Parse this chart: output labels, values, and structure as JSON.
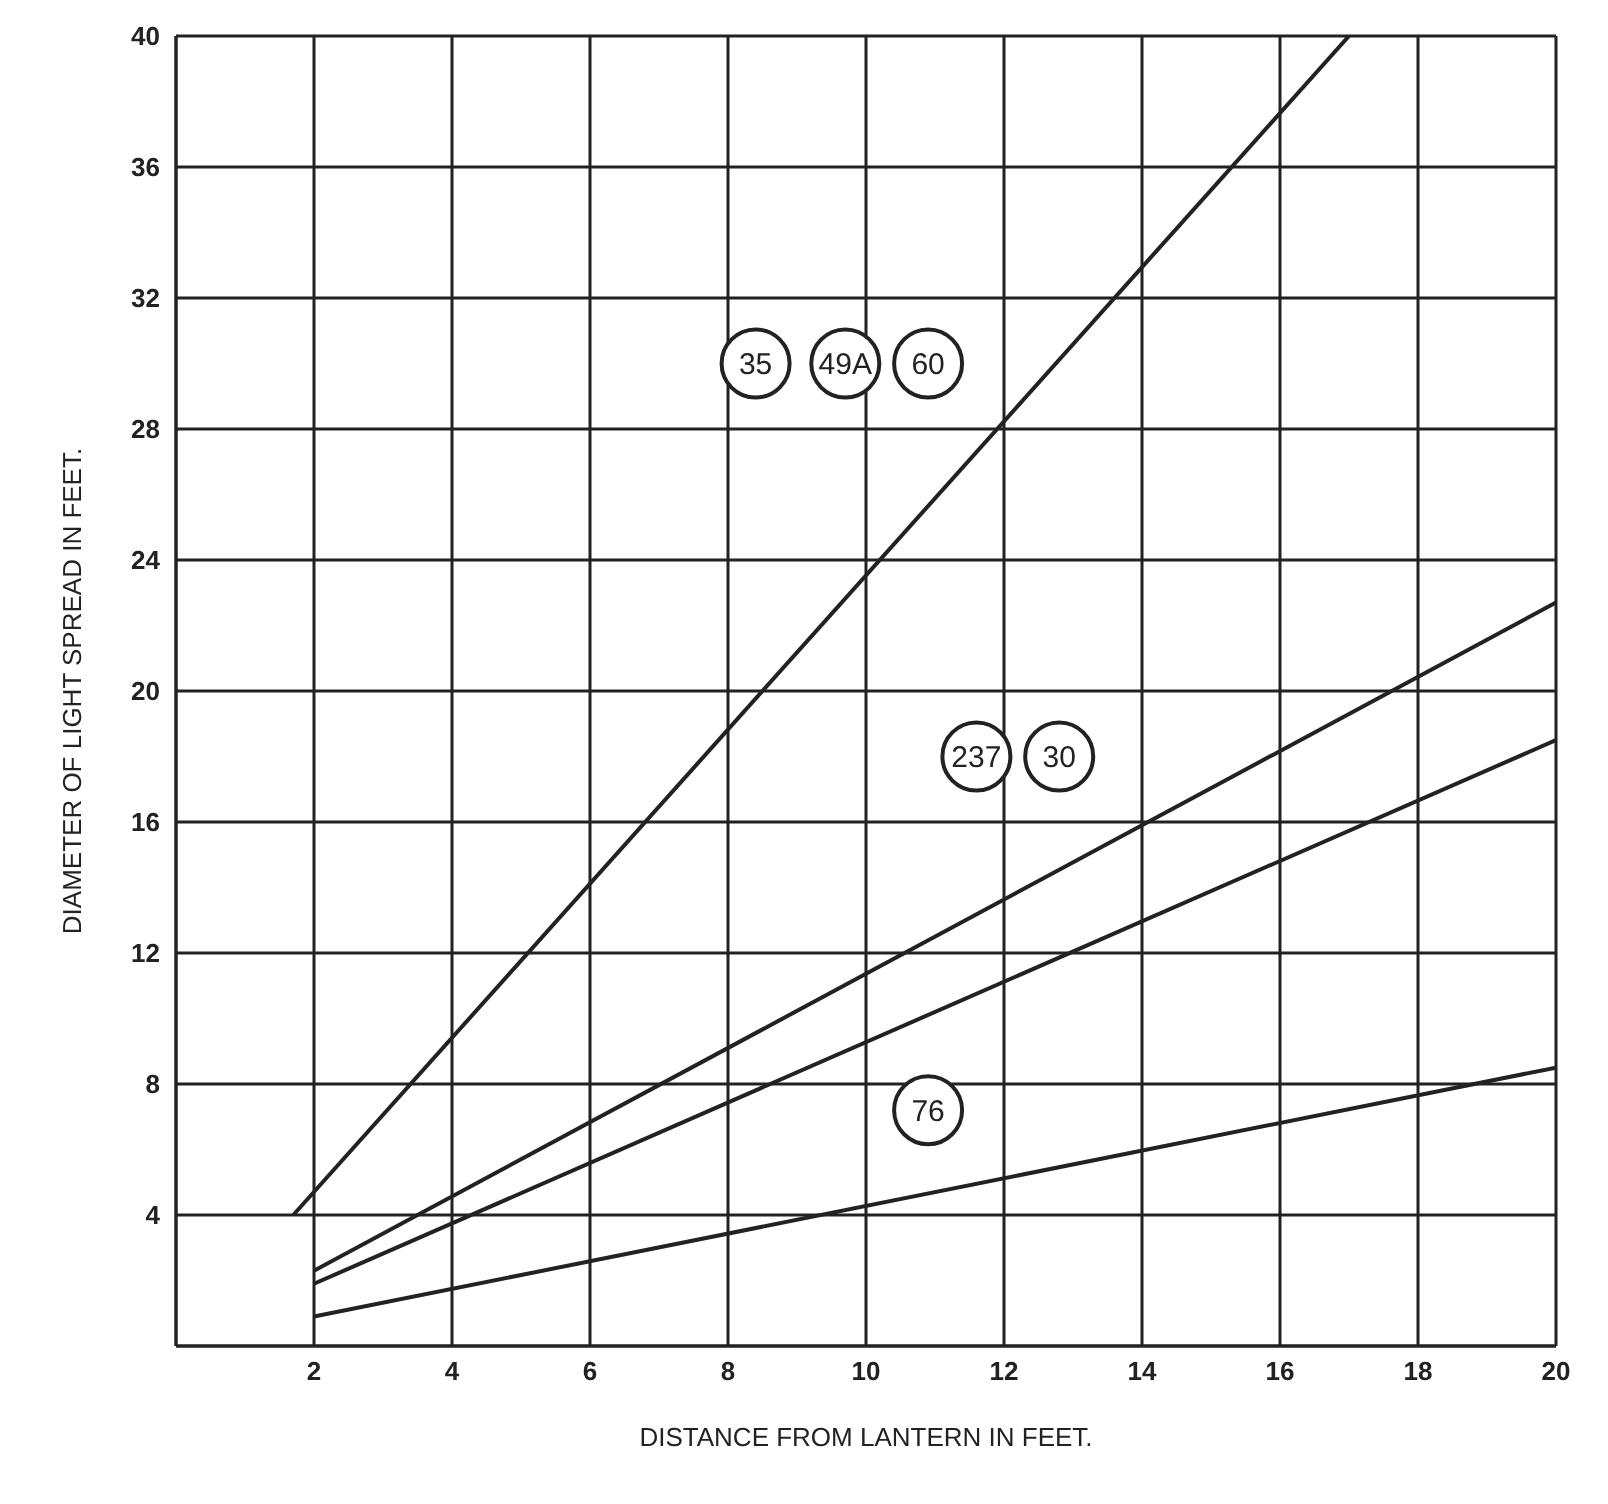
{
  "chart_data": {
    "type": "line",
    "xlabel": "DISTANCE FROM LANTERN IN FEET.",
    "ylabel": "DIAMETER OF LIGHT SPREAD IN FEET.",
    "series": [
      {
        "color": "#222222",
        "x": [
          1.7,
          17
        ],
        "values": [
          4,
          40
        ]
      },
      {
        "color": "#222222",
        "x": [
          2,
          20
        ],
        "values": [
          2.3,
          22.7
        ]
      },
      {
        "color": "#222222",
        "x": [
          2,
          20
        ],
        "values": [
          1.9,
          18.5
        ]
      },
      {
        "color": "#222222",
        "x": [
          2,
          20
        ],
        "values": [
          0.9,
          8.5
        ]
      }
    ],
    "xlim": [
      0,
      20
    ],
    "xticks": [
      2,
      4,
      6,
      8,
      10,
      12,
      14,
      16,
      18,
      20
    ],
    "ylim": [
      0,
      40
    ],
    "yticks": [
      4,
      8,
      12,
      16,
      20,
      24,
      28,
      32,
      36,
      40
    ],
    "grid": true,
    "marker": "none",
    "line_style": "solid",
    "annotations": [
      {
        "text": "35",
        "x": 8.4,
        "y": 30
      },
      {
        "text": "49A",
        "x": 9.7,
        "y": 30
      },
      {
        "text": "60",
        "x": 10.9,
        "y": 30
      },
      {
        "text": "237",
        "x": 11.6,
        "y": 18
      },
      {
        "text": "30",
        "x": 12.8,
        "y": 18
      },
      {
        "text": "76",
        "x": 10.9,
        "y": 7.2
      }
    ]
  }
}
